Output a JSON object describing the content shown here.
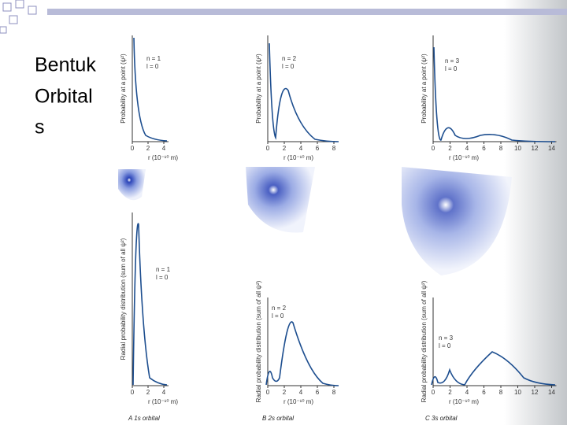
{
  "slide": {
    "title_lines": [
      "Bentuk",
      "Orbital",
      "s"
    ]
  },
  "panels": [
    {
      "caption": "A  1s orbital",
      "top": {
        "quantum": [
          "n = 1",
          "l = 0"
        ],
        "y_label": "Probability at a point (ψ²)",
        "x_label": "r (10⁻¹⁰ m)",
        "x_ticks": [
          "0",
          "2",
          "4"
        ]
      },
      "bottom": {
        "quantum": [
          "n = 1",
          "l = 0"
        ],
        "y_label": "Radial probability distribution (sum of all ψ²)",
        "x_label": "r (10⁻¹⁰ m)",
        "x_ticks": [
          "0",
          "2",
          "4"
        ]
      }
    },
    {
      "caption": "B  2s orbital",
      "top": {
        "quantum": [
          "n = 2",
          "l = 0"
        ],
        "y_label": "Probability at a point (ψ²)",
        "x_label": "r (10⁻¹⁰ m)",
        "x_ticks": [
          "0",
          "2",
          "4",
          "6",
          "8"
        ]
      },
      "bottom": {
        "quantum": [
          "n = 2",
          "l = 0"
        ],
        "y_label": "Radial probability distribution (sum of all ψ²)",
        "x_label": "r (10⁻¹⁰ m)",
        "x_ticks": [
          "0",
          "2",
          "4",
          "6",
          "8"
        ]
      }
    },
    {
      "caption": "C  3s orbital",
      "top": {
        "quantum": [
          "n = 3",
          "l = 0"
        ],
        "y_label": "Probability at a point (ψ²)",
        "x_label": "r (10⁻¹⁰ m)",
        "x_ticks": [
          "0",
          "2",
          "4",
          "6",
          "8",
          "10",
          "12",
          "14"
        ]
      },
      "bottom": {
        "quantum": [
          "n = 3",
          "l = 0"
        ],
        "y_label": "Radial probability distribution (sum of all ψ²)",
        "x_label": "r (10⁻¹⁰ m)",
        "x_ticks": [
          "0",
          "2",
          "4",
          "6",
          "8",
          "10",
          "12",
          "14"
        ]
      }
    }
  ]
}
